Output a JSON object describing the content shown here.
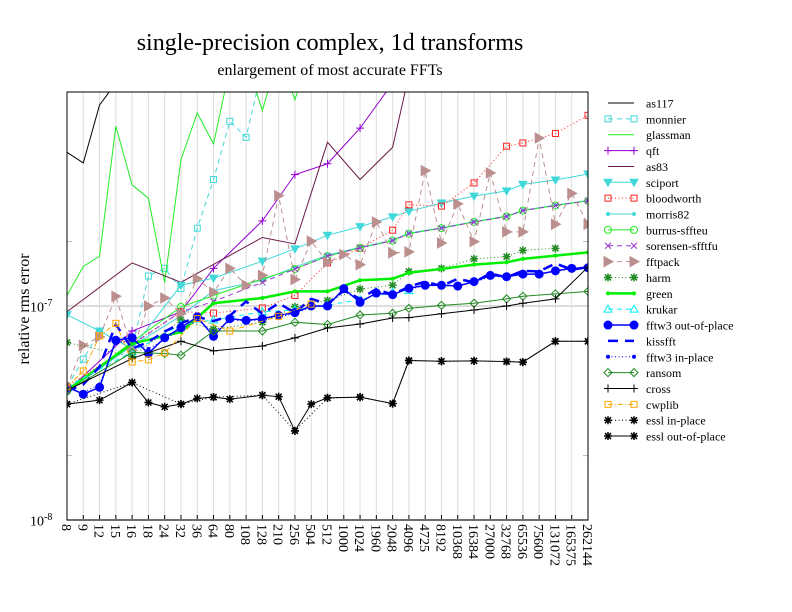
{
  "chart_data": {
    "type": "line",
    "title": "single-precision complex, 1d transforms",
    "subtitle": "enlargement of most accurate FFTs",
    "xlabel": "",
    "ylabel": "relative rms error",
    "yscale": "log",
    "ylim": [
      1e-08,
      1e-06
    ],
    "yticks": [
      {
        "base": "10",
        "exp": "-8",
        "value": 1e-08
      },
      {
        "base": "10",
        "exp": "-7",
        "value": 1e-07
      }
    ],
    "grid": true,
    "legend_position": "right",
    "categories": [
      "8",
      "9",
      "12",
      "15",
      "16",
      "18",
      "24",
      "32",
      "36",
      "64",
      "80",
      "108",
      "128",
      "210",
      "256",
      "504",
      "512",
      "1000",
      "1024",
      "1960",
      "2048",
      "4096",
      "4725",
      "8192",
      "10368",
      "16384",
      "27000",
      "32768",
      "65536",
      "75600",
      "131072",
      "165375",
      "262144"
    ],
    "series": [
      {
        "name": "as117",
        "color": "#000000",
        "dash": "solid",
        "marker": "none",
        "x": [
          "8",
          "9",
          "12",
          "15"
        ],
        "y": [
          5.23e-07,
          4.66e-07,
          8.7e-07,
          1.1e-06
        ]
      },
      {
        "name": "monnier",
        "color": "#40d8d8",
        "dash": "dashed",
        "marker": "square",
        "x": [
          "8",
          "9",
          "12",
          "16",
          "18",
          "24",
          "32",
          "36",
          "64",
          "80",
          "108",
          "128"
        ],
        "y": [
          4.19e-08,
          5.64e-08,
          7.64e-08,
          6.3e-08,
          1.38e-07,
          1.5e-07,
          1.205e-07,
          2.31e-07,
          3.9e-07,
          7.29e-07,
          6.14e-07,
          1.3e-06
        ]
      },
      {
        "name": "glassman",
        "color": "#22ee22",
        "dash": "solid",
        "marker": "none",
        "x": [
          "8",
          "9",
          "12",
          "15",
          "16",
          "18",
          "24",
          "32",
          "36",
          "64",
          "80",
          "108",
          "128",
          "210",
          "256",
          "504"
        ],
        "y": [
          1.12e-07,
          1.53e-07,
          1.71e-07,
          6.92e-07,
          3.68e-07,
          3.19e-07,
          1.29e-07,
          4.83e-07,
          7.98e-07,
          5.72e-07,
          1.3e-06,
          1.4e-06,
          8.2e-07,
          1.5e-06,
          9.2e-07,
          1.6e-06
        ]
      },
      {
        "name": "qft",
        "color": "#9400d3",
        "dash": "solid",
        "marker": "plus",
        "x": [
          "8",
          "16",
          "32",
          "64",
          "128",
          "256",
          "512",
          "1024",
          "2048"
        ],
        "y": [
          4e-08,
          7.64e-08,
          9.4e-08,
          1.5e-07,
          2.5e-07,
          4.11e-07,
          4.62e-07,
          6.78e-07,
          1.1e-06
        ]
      },
      {
        "name": "as83",
        "color": "#6b1848",
        "dash": "solid",
        "marker": "none",
        "x": [
          "8",
          "16",
          "32",
          "128",
          "256",
          "512",
          "1024",
          "2048",
          "4096"
        ],
        "y": [
          9.4e-08,
          1.59e-07,
          1.29e-07,
          2.09e-07,
          1.95e-07,
          5.82e-07,
          3.9e-07,
          5.52e-07,
          1.2e-06
        ]
      },
      {
        "name": "sciport",
        "color": "#40d8d8",
        "dash": "solid",
        "marker": "triangle-down",
        "x": [
          "8",
          "12",
          "16",
          "32",
          "64",
          "128",
          "256",
          "512",
          "1024",
          "2048",
          "4096",
          "8192",
          "16384",
          "32768",
          "65536",
          "131072",
          "262144"
        ],
        "y": [
          9.11e-08,
          7.64e-08,
          6.32e-08,
          1.25e-07,
          1.35e-07,
          1.62e-07,
          1.85e-07,
          2.14e-07,
          2.35e-07,
          2.61e-07,
          2.77e-07,
          3.03e-07,
          3.26e-07,
          3.45e-07,
          3.7e-07,
          3.88e-07,
          4.14e-07
        ]
      },
      {
        "name": "bloodworth",
        "color": "#ff2020",
        "dash": "dotted",
        "marker": "square",
        "x": [
          "8",
          "32",
          "64",
          "128",
          "256",
          "512",
          "1024",
          "2048",
          "4096",
          "8192",
          "16384",
          "32768",
          "65536",
          "131072",
          "262144"
        ],
        "y": [
          4.19e-08,
          9.4e-08,
          9.27e-08,
          9.79e-08,
          1.12e-07,
          1.59e-07,
          1.86e-07,
          2.26e-07,
          2.97e-07,
          2.93e-07,
          3.76e-07,
          5.58e-07,
          5.78e-07,
          6.4e-07,
          7.78e-07
        ]
      },
      {
        "name": "morris82",
        "color": "#40d8d8",
        "dash": "solid",
        "marker": "dot",
        "x": [
          "8",
          "16",
          "32",
          "64",
          "128",
          "256",
          "512",
          "1024",
          "2048",
          "4096",
          "8192",
          "16384",
          "32768",
          "65536",
          "131072",
          "262144"
        ],
        "y": [
          4e-08,
          6.5e-08,
          9e-08,
          1.18e-07,
          1.32e-07,
          1.52e-07,
          1.73e-07,
          1.88e-07,
          2.03e-07,
          2.19e-07,
          2.32e-07,
          2.48e-07,
          2.63e-07,
          2.8e-07,
          2.96e-07,
          3.11e-07
        ]
      },
      {
        "name": "burrus-sffteu",
        "color": "#22ee22",
        "dash": "solid",
        "marker": "circle",
        "x": [
          "8",
          "16",
          "32",
          "64",
          "128",
          "256",
          "512",
          "1024",
          "2048",
          "4096",
          "8192",
          "16384",
          "32768",
          "65536",
          "131072",
          "262144"
        ],
        "y": [
          4e-08,
          6.8e-08,
          9.9e-08,
          1.12e-07,
          1.34e-07,
          1.49e-07,
          1.71e-07,
          1.87e-07,
          2.02e-07,
          2.18e-07,
          2.31e-07,
          2.47e-07,
          2.62e-07,
          2.79e-07,
          2.95e-07,
          3.1e-07
        ]
      },
      {
        "name": "sorensen-sfftfu",
        "color": "#9932cc",
        "dash": "dashed",
        "marker": "x",
        "x": [
          "8",
          "16",
          "32",
          "64",
          "128",
          "256",
          "512",
          "1024",
          "2048",
          "4096",
          "8192",
          "16384",
          "32768",
          "65536",
          "131072",
          "262144"
        ],
        "y": [
          4e-08,
          6.6e-08,
          9.4e-08,
          1.05e-07,
          1.29e-07,
          1.49e-07,
          1.71e-07,
          1.87e-07,
          2.02e-07,
          2.18e-07,
          2.31e-07,
          2.47e-07,
          2.62e-07,
          2.79e-07,
          2.95e-07,
          3.1e-07
        ]
      },
      {
        "name": "fftpack",
        "color": "#bc8f8f",
        "dash": "dashed",
        "marker": "triangle-right",
        "x": [
          "8",
          "9",
          "12",
          "15",
          "16",
          "18",
          "24",
          "32",
          "36",
          "64",
          "80",
          "108",
          "128",
          "210",
          "256",
          "504",
          "512",
          "1000",
          "1024",
          "1960",
          "2048",
          "4096",
          "4725",
          "8192",
          "10368",
          "16384",
          "27000",
          "32768",
          "65536",
          "75600",
          "131072",
          "165375",
          "262144"
        ],
        "y": [
          4.19e-08,
          6.55e-08,
          7.17e-08,
          1.11e-07,
          6.21e-08,
          1e-07,
          1.09e-07,
          9.2e-08,
          1.34e-07,
          1.16e-07,
          1.5e-07,
          1.25e-07,
          1.39e-07,
          3.28e-07,
          1.33e-07,
          2.01e-07,
          1.6e-07,
          1.74e-07,
          1.56e-07,
          2.47e-07,
          1.77e-07,
          1.79e-07,
          4.29e-07,
          1.97e-07,
          3e-07,
          2e-07,
          4.19e-07,
          2.22e-07,
          2.22e-07,
          6.1e-07,
          2.41e-07,
          3.36e-07,
          2.41e-07
        ]
      },
      {
        "name": "harm",
        "color": "#228b22",
        "dash": "dotted",
        "marker": "star",
        "x": [
          "8",
          "16",
          "32",
          "64",
          "128",
          "256",
          "512",
          "1024",
          "2048",
          "4096",
          "8192",
          "16384",
          "32768",
          "65536",
          "131072"
        ],
        "y": [
          6.75e-08,
          5.8e-08,
          8.6e-08,
          7.8e-08,
          8.4e-08,
          9.9e-08,
          1.06e-07,
          1.2e-07,
          1.25e-07,
          1.45e-07,
          1.5e-07,
          1.66e-07,
          1.7e-07,
          1.82e-07,
          1.86e-07
        ]
      },
      {
        "name": "green",
        "color": "#00ee00",
        "dash": "solid-thick",
        "marker": "dot",
        "x": [
          "8",
          "16",
          "32",
          "64",
          "128",
          "256",
          "512",
          "1024",
          "2048",
          "4096",
          "8192",
          "16384",
          "32768",
          "65536",
          "131072",
          "262144"
        ],
        "y": [
          4.04e-08,
          6.67e-08,
          7.56e-08,
          1.03e-07,
          1.09e-07,
          1.17e-07,
          1.17e-07,
          1.32e-07,
          1.34e-07,
          1.43e-07,
          1.49e-07,
          1.56e-07,
          1.6e-07,
          1.66e-07,
          1.72e-07,
          1.78e-07
        ]
      },
      {
        "name": "krukar",
        "color": "#00f0f0",
        "dash": "dashed",
        "marker": "triangle-up",
        "x": [
          "8",
          "16",
          "32",
          "64",
          "128",
          "256",
          "512",
          "1024",
          "2048",
          "4096"
        ],
        "y": [
          4.19e-08,
          6.1e-08,
          8.2e-08,
          8.6e-08,
          9.4e-08,
          9.6e-08,
          1.01e-07,
          1.07e-07,
          1.16e-07,
          1.18e-07
        ]
      },
      {
        "name": "fftw3 out-of-place",
        "color": "#0000ff",
        "dash": "solid",
        "marker": "filled-circle",
        "x": [
          "8",
          "9",
          "12",
          "15",
          "16",
          "18",
          "24",
          "32",
          "36",
          "64",
          "80",
          "108",
          "128",
          "210",
          "256",
          "504",
          "512",
          "1000",
          "1024",
          "1960",
          "2048",
          "4096",
          "4725",
          "8192",
          "10368",
          "16384",
          "27000",
          "32768",
          "65536",
          "75600",
          "131072",
          "165375",
          "262144"
        ],
        "y": [
          4.19e-08,
          3.87e-08,
          4.17e-08,
          6.92e-08,
          7.11e-08,
          6e-08,
          7.11e-08,
          7.92e-08,
          8.89e-08,
          7.22e-08,
          8.73e-08,
          8.57e-08,
          8.73e-08,
          9.04e-08,
          9.31e-08,
          1e-07,
          1e-07,
          1.205e-07,
          1.04e-07,
          1.15e-07,
          1.13e-07,
          1.21e-07,
          1.25e-07,
          1.25e-07,
          1.24e-07,
          1.3e-07,
          1.39e-07,
          1.37e-07,
          1.41e-07,
          1.41e-07,
          1.46e-07,
          1.5e-07,
          1.51e-07
        ]
      },
      {
        "name": "kissfft",
        "color": "#0000ff",
        "dash": "longdash",
        "marker": "none",
        "x": [
          "8",
          "9",
          "12",
          "15",
          "16",
          "18",
          "24",
          "32",
          "36",
          "64",
          "80",
          "108",
          "128",
          "210",
          "256",
          "504",
          "512",
          "1000",
          "1024",
          "1960",
          "2048",
          "4096",
          "4725",
          "8192",
          "10368",
          "16384",
          "27000",
          "32768",
          "65536",
          "75600",
          "131072",
          "165375",
          "262144"
        ],
        "y": [
          4e-08,
          4.3e-08,
          5.2e-08,
          8.2e-08,
          6.3e-08,
          6.8e-08,
          7.6e-08,
          8.3e-08,
          8.9e-08,
          8.5e-08,
          9e-08,
          1.05e-07,
          9.2e-08,
          1.03e-07,
          9.3e-08,
          1.08e-07,
          1.02e-07,
          1.18e-07,
          1.08e-07,
          1.2e-07,
          1.13e-07,
          1.23e-07,
          1.3e-07,
          1.24e-07,
          1.34e-07,
          1.29e-07,
          1.42e-07,
          1.36e-07,
          1.46e-07,
          1.45e-07,
          1.58e-07,
          1.48e-07,
          1.52e-07
        ]
      },
      {
        "name": "fftw3 in-place",
        "color": "#0000ff",
        "dash": "dotted",
        "marker": "dot",
        "x": [
          "8",
          "9",
          "12",
          "15",
          "16",
          "18",
          "24",
          "32",
          "36",
          "64",
          "80",
          "108",
          "128",
          "210",
          "256",
          "504",
          "512",
          "1000",
          "1024",
          "1960",
          "2048",
          "4096",
          "4725",
          "8192",
          "10368",
          "16384",
          "27000",
          "32768",
          "65536",
          "75600",
          "131072",
          "165375",
          "262144"
        ],
        "y": [
          4.1e-08,
          3.95e-08,
          4.3e-08,
          6.7e-08,
          6.9e-08,
          6.3e-08,
          7e-08,
          7.8e-08,
          8.6e-08,
          7.6e-08,
          8.5e-08,
          8.6e-08,
          8.5e-08,
          8.9e-08,
          9.2e-08,
          9.9e-08,
          1e-07,
          1.18e-07,
          1.05e-07,
          1.14e-07,
          1.14e-07,
          1.2e-07,
          1.24e-07,
          1.25e-07,
          1.25e-07,
          1.29e-07,
          1.37e-07,
          1.37e-07,
          1.4e-07,
          1.41e-07,
          1.45e-07,
          1.49e-07,
          1.5e-07
        ]
      },
      {
        "name": "ransom",
        "color": "#228b22",
        "dash": "solid",
        "marker": "diamond",
        "x": [
          "8",
          "16",
          "24",
          "32",
          "64",
          "128",
          "256",
          "512",
          "1024",
          "2048",
          "4096",
          "8192",
          "16384",
          "32768",
          "65536",
          "131072",
          "262144"
        ],
        "y": [
          4e-08,
          6.06e-08,
          6e-08,
          5.89e-08,
          7.64e-08,
          7.64e-08,
          8.39e-08,
          8.2e-08,
          9.08e-08,
          9.25e-08,
          9.75e-08,
          1.007e-07,
          1.03e-07,
          1.08e-07,
          1.11e-07,
          1.14e-07,
          1.17e-07
        ]
      },
      {
        "name": "cross",
        "color": "#000000",
        "dash": "solid",
        "marker": "plus",
        "x": [
          "8",
          "16",
          "32",
          "64",
          "128",
          "256",
          "512",
          "1024",
          "2048",
          "4096",
          "8192",
          "16384",
          "32768",
          "65536",
          "131072",
          "262144"
        ],
        "y": [
          4.04e-08,
          5.68e-08,
          6.84e-08,
          6.17e-08,
          6.5e-08,
          7.1e-08,
          7.89e-08,
          8.24e-08,
          8.79e-08,
          8.82e-08,
          9.2e-08,
          9.58e-08,
          1e-07,
          1.03e-07,
          1.08e-07,
          1.52e-07
        ]
      },
      {
        "name": "cwplib",
        "color": "#ffa500",
        "dash": "dashdot",
        "marker": "square",
        "x": [
          "8",
          "9",
          "12",
          "15",
          "16",
          "18",
          "24",
          "36",
          "80",
          "210",
          "504"
        ],
        "y": [
          4.19e-08,
          4.97e-08,
          7.25e-08,
          8.3e-08,
          5.48e-08,
          5.6e-08,
          6.04e-08,
          8.73e-08,
          7.64e-08,
          8.95e-08,
          1.02e-07
        ]
      },
      {
        "name": "essl in-place",
        "color": "#000000",
        "dash": "dotted",
        "marker": "star",
        "x": [
          "8",
          "16",
          "32",
          "64",
          "128",
          "256",
          "512",
          "1024",
          "2048",
          "4096",
          "8192",
          "16384",
          "32768",
          "65536",
          "131072",
          "262144"
        ],
        "y": [
          3.48e-08,
          4.39e-08,
          3.48e-08,
          3.75e-08,
          3.83e-08,
          2.61e-08,
          3.72e-08,
          3.75e-08,
          3.5e-08,
          5.56e-08,
          5.52e-08,
          5.54e-08,
          5.5e-08,
          5.47e-08,
          6.84e-08,
          6.84e-08
        ]
      },
      {
        "name": "essl out-of-place",
        "color": "#000000",
        "dash": "solid",
        "marker": "star",
        "x": [
          "8",
          "12",
          "16",
          "18",
          "24",
          "32",
          "36",
          "64",
          "80",
          "128",
          "210",
          "256",
          "504",
          "512",
          "1024",
          "2048",
          "4096",
          "8192",
          "16384",
          "32768",
          "65536",
          "131072",
          "262144"
        ],
        "y": [
          3.48e-08,
          3.63e-08,
          4.39e-08,
          3.54e-08,
          3.38e-08,
          3.48e-08,
          3.7e-08,
          3.75e-08,
          3.67e-08,
          3.83e-08,
          3.77e-08,
          2.61e-08,
          3.48e-08,
          3.72e-08,
          3.75e-08,
          3.5e-08,
          5.56e-08,
          5.52e-08,
          5.54e-08,
          5.5e-08,
          5.47e-08,
          6.84e-08,
          6.84e-08
        ]
      }
    ]
  }
}
